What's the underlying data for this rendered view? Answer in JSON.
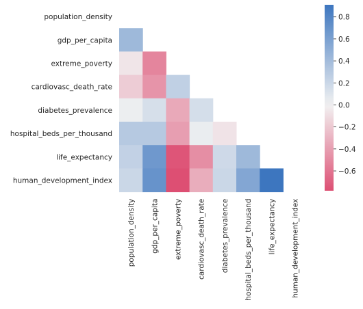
{
  "chart_data": {
    "type": "heatmap",
    "title": "",
    "xlabel": "",
    "ylabel": "",
    "mask": "upper-triangle-including-diagonal",
    "variables": [
      "population_density",
      "gdp_per_capita",
      "extreme_poverty",
      "cardiovasc_death_rate",
      "diabetes_prevalence",
      "hospital_beds_per_thousand",
      "life_expectancy",
      "human_development_index"
    ],
    "values": [
      [
        null,
        null,
        null,
        null,
        null,
        null,
        null,
        null
      ],
      [
        0.42,
        null,
        null,
        null,
        null,
        null,
        null,
        null
      ],
      [
        -0.06,
        -0.52,
        null,
        null,
        null,
        null,
        null,
        null
      ],
      [
        -0.18,
        -0.45,
        0.25,
        null,
        null,
        null,
        null,
        null
      ],
      [
        0.03,
        0.14,
        -0.35,
        0.15,
        null,
        null,
        null,
        null
      ],
      [
        0.3,
        0.3,
        -0.4,
        0.04,
        -0.07,
        null,
        null,
        null
      ],
      [
        0.24,
        0.66,
        -0.75,
        -0.48,
        0.18,
        0.42,
        null,
        null
      ],
      [
        0.2,
        0.7,
        -0.78,
        -0.33,
        0.2,
        0.56,
        0.91,
        null
      ]
    ],
    "colorbar": {
      "range": [
        -0.78,
        0.91
      ],
      "ticks": [
        "0.8",
        "0.6",
        "0.4",
        "0.2",
        "0.0",
        "−0.2",
        "−0.4",
        "−0.6"
      ],
      "tick_values": [
        0.8,
        0.6,
        0.4,
        0.2,
        0.0,
        -0.2,
        -0.4,
        -0.6
      ]
    },
    "colors": {
      "negative": "#dd4f73",
      "center": "#f2f2f2",
      "positive": "#3d76bf"
    }
  }
}
